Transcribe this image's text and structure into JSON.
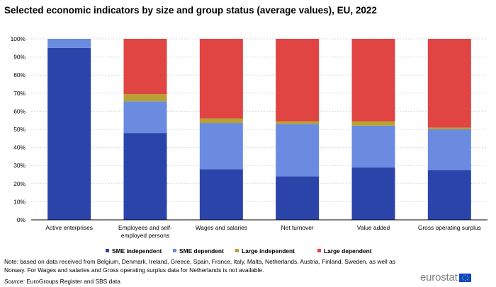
{
  "title": "Selected economic indicators by size and group status (average values), EU, 2022",
  "note": "Note: based on data received from Belgium,  Denmark, Ireland, Greece, Spain, France, Italy, Malta, Netherlands, Austria, Finland, Sweden, as well as Norway. For Wages and salaries and Gross operating surplus data for Netherlands is not available.",
  "source": {
    "label": "Source:",
    "text": " EuroGroups Register and SBS data"
  },
  "logo": {
    "text": "eurostat"
  },
  "chart_data": {
    "type": "bar",
    "stacked": true,
    "categories": [
      "Active enterprises",
      "Employees and self-employed persons",
      "Wages and salaries",
      "Net turnover",
      "Value added",
      "Gross operating surplus"
    ],
    "category_lines": [
      [
        "Active enterprises"
      ],
      [
        "Employees and self-",
        "employed persons"
      ],
      [
        "Wages and salaries"
      ],
      [
        "Net turnover"
      ],
      [
        "Value added"
      ],
      [
        "Gross operating surplus"
      ]
    ],
    "series": [
      {
        "name": "SME independent",
        "color": "#2a44a9",
        "values": [
          95.0,
          48.0,
          28.0,
          24.0,
          29.0,
          27.5
        ]
      },
      {
        "name": "SME dependent",
        "color": "#6a8be0",
        "values": [
          5.0,
          17.5,
          25.5,
          29.0,
          23.0,
          22.5
        ]
      },
      {
        "name": "Large independent",
        "color": "#b9a033",
        "values": [
          0.0,
          4.0,
          2.5,
          1.5,
          2.5,
          1.0
        ]
      },
      {
        "name": "Large dependent",
        "color": "#e04443",
        "values": [
          0.0,
          30.5,
          44.0,
          45.5,
          45.5,
          49.0
        ]
      }
    ],
    "ylim": [
      0,
      100
    ],
    "yticks": [
      "0%",
      "10%",
      "20%",
      "30%",
      "40%",
      "50%",
      "60%",
      "70%",
      "80%",
      "90%",
      "100%"
    ],
    "grid": true,
    "legend": "bottom",
    "xlabel": "",
    "ylabel": ""
  }
}
